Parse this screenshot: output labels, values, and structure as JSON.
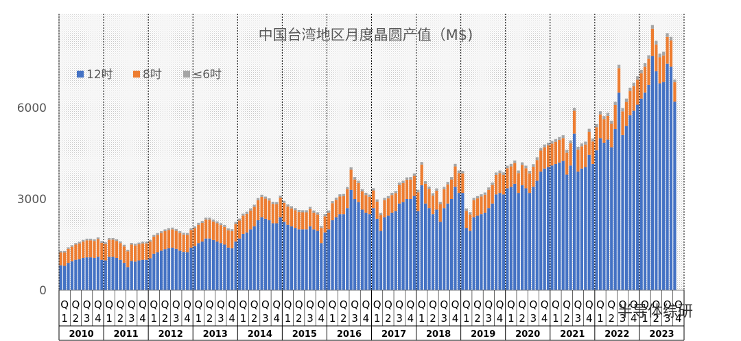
{
  "chart_data": {
    "type": "bar",
    "stacked": true,
    "title": "中国台湾地区月度晶圆产值（M$)",
    "ylim": [
      0,
      9000
    ],
    "yticks": [
      0,
      3000,
      6000
    ],
    "ytick_labels": [
      "0",
      "3000",
      "6000"
    ],
    "legend_position": "top-left",
    "quarter_prefix": "Q",
    "quarter_labels": [
      "1",
      "2",
      "3",
      "4"
    ],
    "years": [
      "2010",
      "2011",
      "2012",
      "2013",
      "2014",
      "2015",
      "2016",
      "2017",
      "2018",
      "2019",
      "2020",
      "2021",
      "2022",
      "2023"
    ],
    "series": [
      {
        "name": "12吋",
        "color": "#4472C4",
        "values": [
          820,
          800,
          900,
          950,
          1000,
          1020,
          1060,
          1080,
          1080,
          1060,
          1100,
          1000,
          980,
          1100,
          1100,
          1060,
          1000,
          900,
          760,
          960,
          940,
          980,
          1000,
          1000,
          1050,
          1200,
          1250,
          1300,
          1350,
          1380,
          1400,
          1360,
          1300,
          1260,
          1250,
          1400,
          1450,
          1550,
          1600,
          1700,
          1700,
          1650,
          1600,
          1550,
          1500,
          1400,
          1380,
          1600,
          1700,
          1850,
          1900,
          2000,
          2100,
          2300,
          2400,
          2350,
          2300,
          2200,
          2200,
          2400,
          2250,
          2150,
          2100,
          2050,
          2000,
          2000,
          2000,
          2100,
          2000,
          1950,
          1550,
          1900,
          2000,
          2300,
          2400,
          2500,
          2500,
          2700,
          3300,
          3000,
          2900,
          2650,
          2550,
          2500,
          2700,
          2350,
          1950,
          2400,
          2450,
          2550,
          2600,
          2850,
          2900,
          3000,
          3000,
          3100,
          2600,
          3450,
          2850,
          2700,
          2500,
          2650,
          2250,
          2700,
          2850,
          3000,
          3400,
          3200,
          3200,
          2050,
          1950,
          2400,
          2450,
          2500,
          2550,
          2700,
          2850,
          3150,
          3200,
          3150,
          3350,
          3400,
          3500,
          3200,
          3450,
          3350,
          3200,
          3400,
          3600,
          3900,
          4000,
          4050,
          4100,
          4150,
          4200,
          4250,
          3800,
          4100,
          5150,
          3900,
          4000,
          4050,
          4450,
          4150,
          4600,
          5000,
          4850,
          4950,
          4700,
          5300,
          6500,
          5100,
          5400,
          5750,
          5900,
          6100,
          6300,
          6500,
          6750,
          7700,
          7200,
          6800,
          6850,
          7450,
          7350,
          6200
        ]
      },
      {
        "name": "8吋",
        "color": "#ED7D31",
        "values": [
          420,
          440,
          460,
          480,
          500,
          520,
          540,
          560,
          560,
          560,
          580,
          560,
          540,
          560,
          560,
          560,
          550,
          540,
          520,
          540,
          530,
          530,
          540,
          540,
          550,
          560,
          570,
          580,
          590,
          600,
          600,
          590,
          580,
          570,
          570,
          580,
          590,
          600,
          610,
          620,
          620,
          610,
          600,
          590,
          580,
          570,
          560,
          580,
          590,
          600,
          610,
          620,
          640,
          660,
          670,
          660,
          650,
          640,
          630,
          640,
          620,
          600,
          590,
          580,
          570,
          560,
          560,
          570,
          550,
          540,
          500,
          530,
          550,
          560,
          570,
          580,
          590,
          620,
          660,
          640,
          620,
          600,
          580,
          570,
          580,
          560,
          520,
          560,
          570,
          580,
          590,
          610,
          620,
          630,
          640,
          660,
          620,
          680,
          650,
          630,
          610,
          620,
          580,
          620,
          630,
          640,
          670,
          650,
          640,
          560,
          540,
          560,
          570,
          580,
          590,
          600,
          610,
          640,
          650,
          640,
          660,
          670,
          680,
          650,
          670,
          660,
          640,
          660,
          680,
          690,
          700,
          710,
          720,
          730,
          740,
          750,
          720,
          730,
          750,
          720,
          730,
          740,
          760,
          740,
          760,
          780,
          770,
          780,
          770,
          790,
          800,
          780,
          790,
          800,
          810,
          820,
          830,
          850,
          860,
          900,
          880,
          860,
          870,
          880,
          860,
          640
        ]
      },
      {
        "name": "≤6吋",
        "color": "#A5A5A5",
        "values": [
          50,
          50,
          50,
          50,
          50,
          50,
          55,
          55,
          55,
          55,
          55,
          55,
          55,
          55,
          55,
          55,
          55,
          55,
          50,
          55,
          55,
          55,
          55,
          55,
          55,
          60,
          60,
          60,
          60,
          60,
          60,
          60,
          60,
          60,
          60,
          60,
          60,
          65,
          65,
          65,
          65,
          65,
          65,
          65,
          65,
          65,
          65,
          65,
          65,
          65,
          70,
          70,
          70,
          70,
          70,
          70,
          70,
          70,
          70,
          70,
          70,
          70,
          70,
          70,
          70,
          70,
          70,
          70,
          70,
          70,
          65,
          70,
          70,
          70,
          75,
          75,
          75,
          75,
          80,
          80,
          80,
          75,
          75,
          75,
          75,
          75,
          70,
          75,
          75,
          75,
          75,
          80,
          80,
          80,
          80,
          80,
          80,
          85,
          85,
          80,
          80,
          80,
          75,
          80,
          80,
          80,
          85,
          85,
          85,
          75,
          75,
          75,
          75,
          75,
          75,
          80,
          80,
          80,
          85,
          85,
          85,
          85,
          85,
          85,
          85,
          85,
          85,
          85,
          90,
          90,
          90,
          90,
          90,
          90,
          95,
          95,
          95,
          95,
          100,
          95,
          95,
          95,
          100,
          100,
          100,
          105,
          105,
          105,
          105,
          105,
          110,
          110,
          110,
          110,
          110,
          115,
          115,
          115,
          115,
          120,
          120,
          120,
          120,
          120,
          120,
          90
        ]
      }
    ]
  },
  "watermark": "半导体综研"
}
